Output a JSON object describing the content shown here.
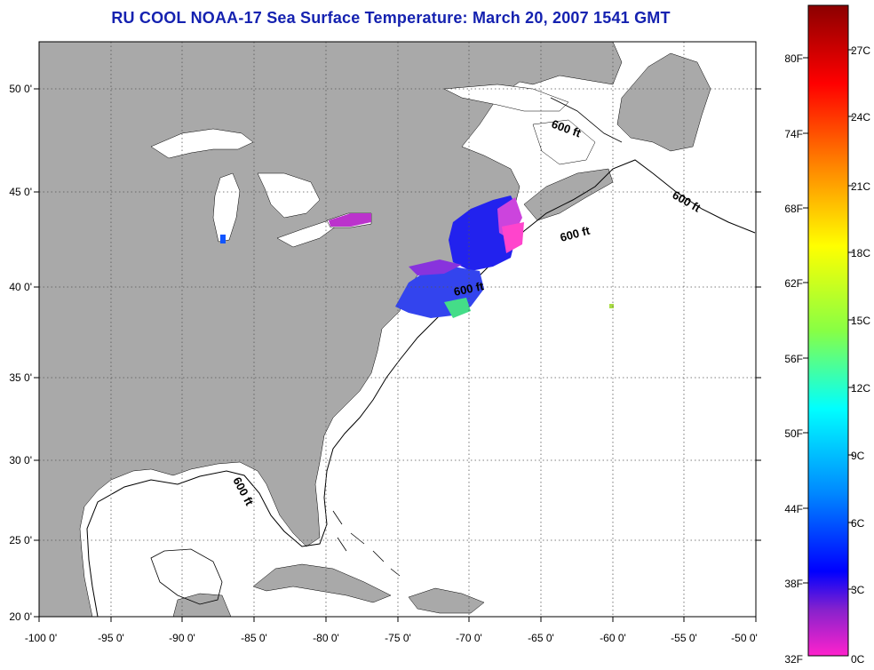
{
  "title": "RU COOL  NOAA-17  Sea Surface Temperature:  March 20, 2007 1541 GMT",
  "map": {
    "lon_range": [
      -100,
      -50
    ],
    "lat_range": [
      20,
      52.5
    ],
    "x_ticks": [
      "-100 0'",
      "-95 0'",
      "-90 0'",
      "-85 0'",
      "-80 0'",
      "-75 0'",
      "-70 0'",
      "-65 0'",
      "-60 0'",
      "-55 0'",
      "-50 0'"
    ],
    "y_ticks": [
      "50 0'",
      "45 0'",
      "40 0'",
      "35 0'",
      "30 0'",
      "25 0'",
      "20 0'"
    ],
    "grid": true,
    "land_color": "#a9a9a9",
    "sea_color": "#ffffff",
    "contour_labels": [
      "600 ft",
      "600 ft",
      "600 ft",
      "600 ft",
      "600 ft"
    ]
  },
  "colorbar": {
    "fahrenheit_labels": [
      "80F",
      "74F",
      "68F",
      "62F",
      "56F",
      "50F",
      "44F",
      "38F",
      "32F"
    ],
    "celsius_labels": [
      "27C",
      "24C",
      "21C",
      "18C",
      "15C",
      "12C",
      "9C",
      "6C",
      "3C",
      "0C"
    ],
    "colors_top_to_bottom": [
      "#8b0000",
      "#ff0000",
      "#ff8800",
      "#ffff00",
      "#88ff44",
      "#00ffff",
      "#0088ff",
      "#0000ff",
      "#8822cc",
      "#ff22cc"
    ]
  }
}
